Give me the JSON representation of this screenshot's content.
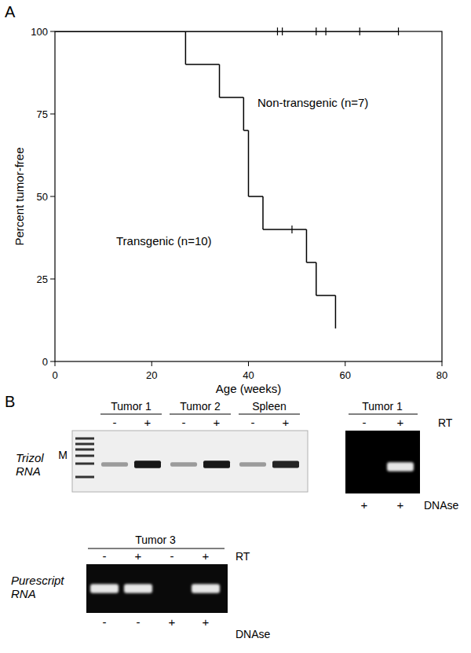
{
  "panel_a": "A",
  "chart_data": {
    "type": "step",
    "x_label": "Age (weeks)",
    "y_label": "Percent tumor-free",
    "xlim": [
      0,
      80
    ],
    "ylim": [
      0,
      100
    ],
    "xticks": [
      0,
      20,
      40,
      60,
      80
    ],
    "yticks": [
      0,
      25,
      50,
      75,
      100
    ],
    "grid": false,
    "series": [
      {
        "name": "Non-transgenic (n=7)",
        "color": "#000000",
        "x": [
          0,
          71
        ],
        "values": [
          100,
          100
        ],
        "censored": {
          "x": [
            46,
            47,
            54,
            56,
            63,
            71
          ],
          "values": [
            100,
            100,
            100,
            100,
            100,
            100
          ]
        }
      },
      {
        "name": "Transgenic (n=10)",
        "color": "#000000",
        "x": [
          0,
          27,
          34,
          39,
          40,
          43,
          52,
          54,
          58
        ],
        "values": [
          100,
          90,
          80,
          70,
          50,
          40,
          30,
          20,
          10
        ],
        "censored": {
          "x": [
            49
          ],
          "values": [
            40
          ]
        }
      }
    ]
  },
  "panel_b": {
    "label": "B",
    "top": {
      "row_label": [
        "Trizol",
        "RNA"
      ],
      "marker": "M",
      "groups": [
        {
          "name": "Tumor 1",
          "lanes": [
            {
              "rt": "-",
              "band": 0.35
            },
            {
              "rt": "+",
              "band": 0.9
            }
          ]
        },
        {
          "name": "Tumor 2",
          "lanes": [
            {
              "rt": "-",
              "band": 0.35
            },
            {
              "rt": "+",
              "band": 0.9
            }
          ]
        },
        {
          "name": "Spleen",
          "lanes": [
            {
              "rt": "-",
              "band": 0.35
            },
            {
              "rt": "+",
              "band": 0.85
            }
          ]
        }
      ]
    },
    "inset": {
      "rt_label": "RT",
      "dnase_label": "DNAse",
      "groups": [
        {
          "name": "Tumor 1",
          "lanes": [
            {
              "rt": "-",
              "dnase": "+",
              "band": 0
            },
            {
              "rt": "+",
              "dnase": "+",
              "band": 0.9
            }
          ]
        }
      ]
    },
    "bottom": {
      "row_label": [
        "Purescript",
        "RNA"
      ],
      "rt_label": "RT",
      "dnase_label": "DNAse",
      "groups": [
        {
          "name": "Tumor 3",
          "lanes": [
            {
              "rt": "-",
              "dnase": "-",
              "band": 0.9
            },
            {
              "rt": "+",
              "dnase": "-",
              "band": 0.9
            },
            {
              "rt": "-",
              "dnase": "+",
              "band": 0
            },
            {
              "rt": "+",
              "dnase": "+",
              "band": 0.9
            }
          ]
        }
      ]
    }
  }
}
